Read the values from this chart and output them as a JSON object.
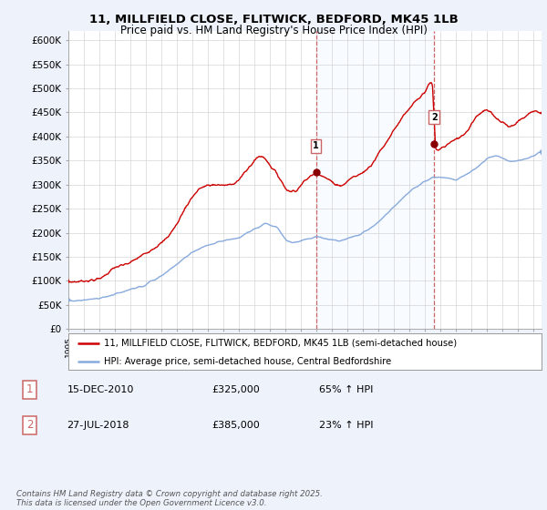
{
  "title_line1": "11, MILLFIELD CLOSE, FLITWICK, BEDFORD, MK45 1LB",
  "title_line2": "Price paid vs. HM Land Registry's House Price Index (HPI)",
  "ylim": [
    0,
    620000
  ],
  "yticks": [
    0,
    50000,
    100000,
    150000,
    200000,
    250000,
    300000,
    350000,
    400000,
    450000,
    500000,
    550000,
    600000
  ],
  "ytick_labels": [
    "£0",
    "£50K",
    "£100K",
    "£150K",
    "£200K",
    "£250K",
    "£300K",
    "£350K",
    "£400K",
    "£450K",
    "£500K",
    "£550K",
    "£600K"
  ],
  "background_color": "#eef2fb",
  "plot_bg_color": "#ffffff",
  "grid_color": "#cccccc",
  "sale1_x": 2010.96,
  "sale1_y": 325000,
  "sale2_x": 2018.575,
  "sale2_y": 385000,
  "legend_line1": "11, MILLFIELD CLOSE, FLITWICK, BEDFORD, MK45 1LB (semi-detached house)",
  "legend_line2": "HPI: Average price, semi-detached house, Central Bedfordshire",
  "footnote": "Contains HM Land Registry data © Crown copyright and database right 2025.\nThis data is licensed under the Open Government Licence v3.0.",
  "line_color_red": "#cc0000",
  "line_color_blue": "#88aadd",
  "dashed_line_color": "#cc6666",
  "span_color": "#ddeeff",
  "xmin": 1995,
  "xmax": 2025.5
}
